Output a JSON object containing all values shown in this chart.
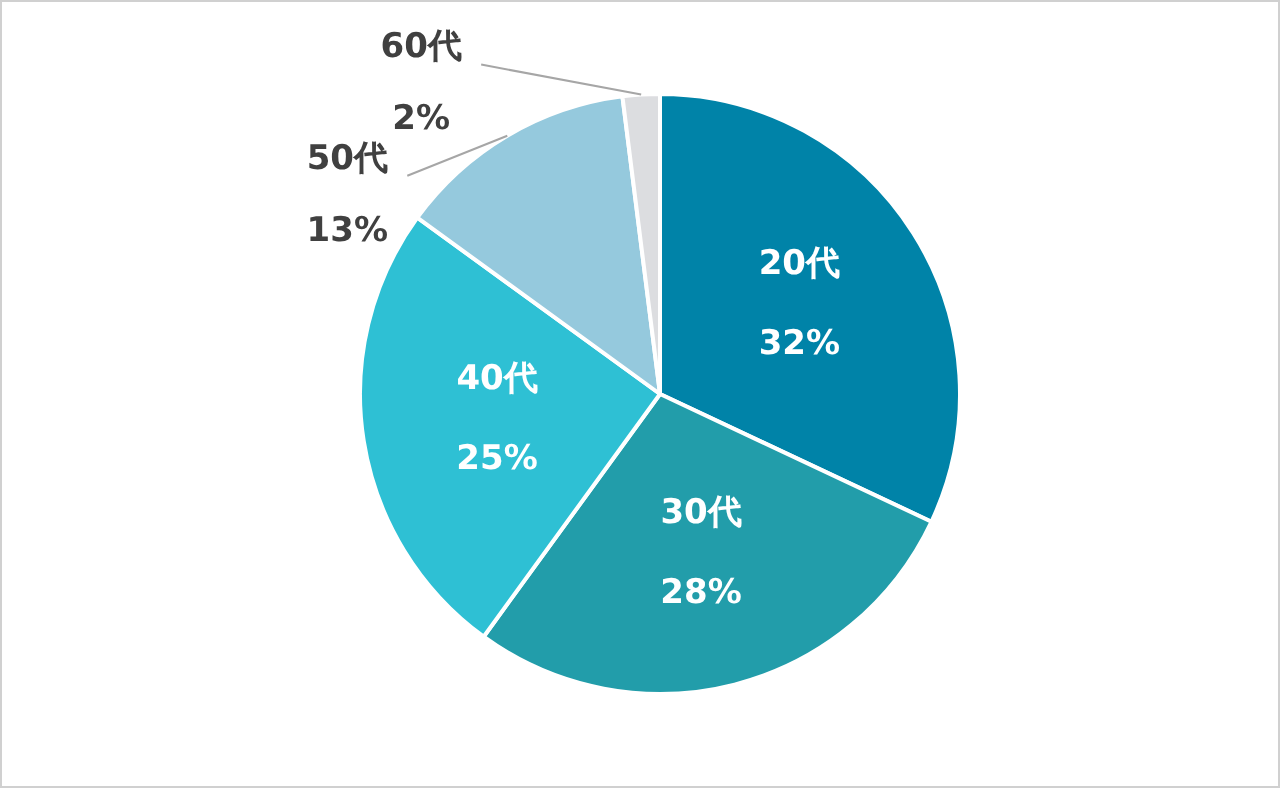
{
  "chart_data": {
    "type": "pie",
    "categories": [
      "20代",
      "30代",
      "40代",
      "50代",
      "60代"
    ],
    "values": [
      32,
      28,
      25,
      13,
      2
    ],
    "colors": [
      "#0083a8",
      "#229daa",
      "#2ec0d4",
      "#95c9dd",
      "#dcdde0"
    ],
    "value_labels": [
      "32%",
      "28%",
      "25%",
      "13%",
      "2%"
    ],
    "legend": false
  }
}
